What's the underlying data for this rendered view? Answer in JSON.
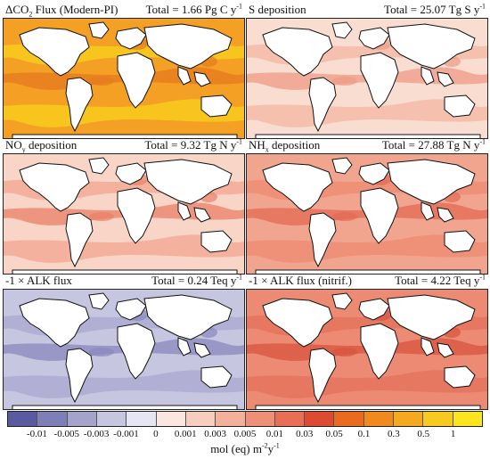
{
  "panels": [
    {
      "title_main": "ΔCO",
      "title_sub": "2",
      "title_rest": " Flux (Modern-PI)",
      "total": "Total = 1.66 Pg C y",
      "total_sup": "-1",
      "ocean_color": "#f3a024",
      "band_color": "#f8d21c",
      "accent_color": "#e67a1f"
    },
    {
      "title_main": "S deposition",
      "title_sub": "",
      "title_rest": "",
      "total": "Total = 25.07 Tg S y",
      "total_sup": "-1",
      "ocean_color": "#f9ddd0",
      "band_color": "#f4b6a3",
      "accent_color": "#ee9a85"
    },
    {
      "title_main": "NO",
      "title_sub": "y",
      "title_rest": " deposition",
      "total": "Total = 9.32 Tg N y",
      "total_sup": "-1",
      "ocean_color": "#f8d5c6",
      "band_color": "#f3a690",
      "accent_color": "#ea7f66"
    },
    {
      "title_main": "NH",
      "title_sub": "x",
      "title_rest": " deposition",
      "total": "Total = 27.88 Tg N y",
      "total_sup": "-1",
      "ocean_color": "#f2a58e",
      "band_color": "#ee8a72",
      "accent_color": "#e36a52"
    },
    {
      "title_main": "-1 × ALK flux",
      "title_sub": "",
      "title_rest": "",
      "total": "Total = 0.24 Teq y",
      "total_sup": "-1",
      "ocean_color": "#c7c6e0",
      "band_color": "#a9a8d0",
      "accent_color": "#8987bd"
    },
    {
      "title_main": "-1 × ALK flux (nitrif.)",
      "title_sub": "",
      "title_rest": "",
      "total": "Total = 4.22 Teq y",
      "total_sup": "-1",
      "ocean_color": "#ec8a73",
      "band_color": "#e4705a",
      "accent_color": "#d8533e"
    }
  ],
  "colorbar": {
    "colors": [
      "#5a5aa0",
      "#7f7fb8",
      "#a3a3cc",
      "#c6c6e0",
      "#e6e6f2",
      "#fbe7df",
      "#f7cdbd",
      "#f3b19c",
      "#ee9078",
      "#e86f56",
      "#de4b33",
      "#e86b1f",
      "#f08a1f",
      "#f5a91f",
      "#f8c91f",
      "#fae51e"
    ],
    "ticks": [
      "-0.01",
      "-0.005",
      "-0.003",
      "-0.001",
      "0",
      "0.001",
      "0.003",
      "0.005",
      "0.01",
      "0.03",
      "0.05",
      "0.1",
      "0.3",
      "0.5",
      "1"
    ],
    "units_main": "mol (eq) m",
    "units_sup1": "-2",
    "units_mid": "y",
    "units_sup2": "-1"
  }
}
